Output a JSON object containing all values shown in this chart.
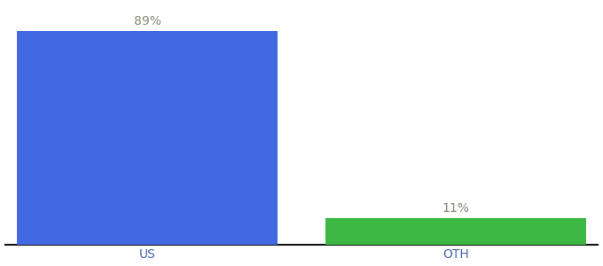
{
  "categories": [
    "US",
    "OTH"
  ],
  "values": [
    89,
    11
  ],
  "bar_colors": [
    "#4169e1",
    "#3cb843"
  ],
  "label_texts": [
    "89%",
    "11%"
  ],
  "ylim": [
    0,
    100
  ],
  "background_color": "#ffffff",
  "label_color": "#888877",
  "label_fontsize": 10,
  "tick_fontsize": 10,
  "tick_color": "#4466aa",
  "bar_width": 0.55,
  "spine_color": "#111111",
  "x_positions": [
    0.3,
    0.95
  ],
  "xlim": [
    0.0,
    1.25
  ]
}
